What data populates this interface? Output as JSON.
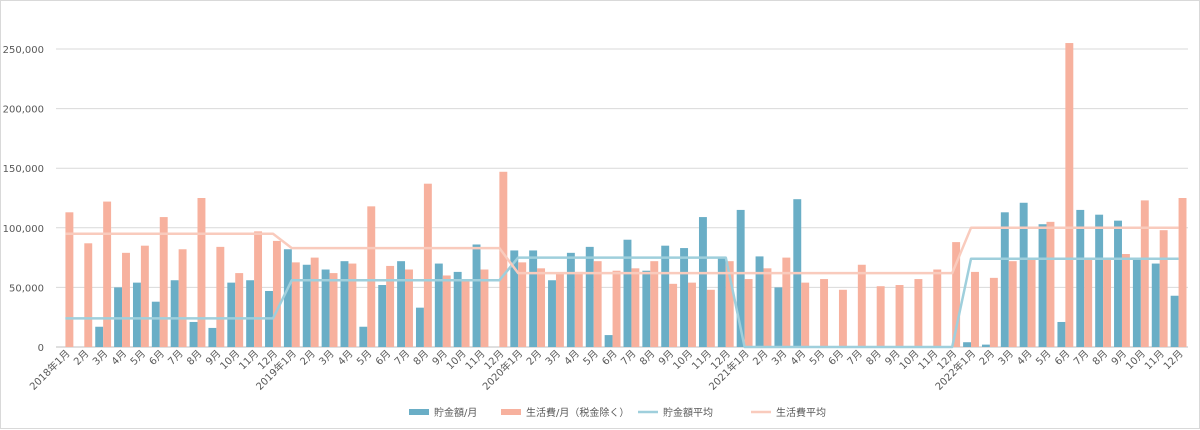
{
  "chart_data": {
    "type": "bar",
    "title": "",
    "xlabel": "",
    "ylabel": "",
    "ylim": [
      0,
      250000
    ],
    "yticks": [
      0,
      50000,
      100000,
      150000,
      200000,
      250000
    ],
    "ytick_labels": [
      "0",
      "50,000",
      "100,000",
      "150,000",
      "200,000",
      "250,000"
    ],
    "grid": true,
    "legend_position": "bottom",
    "categories": [
      "2018年1月",
      "2月",
      "3月",
      "4月",
      "5月",
      "6月",
      "7月",
      "8月",
      "9月",
      "10月",
      "11月",
      "12月",
      "2019年1月",
      "2月",
      "3月",
      "4月",
      "5月",
      "6月",
      "7月",
      "8月",
      "9月",
      "10月",
      "11月",
      "12月",
      "2020年1月",
      "2月",
      "3月",
      "4月",
      "5月",
      "6月",
      "7月",
      "8月",
      "9月",
      "10月",
      "11月",
      "12月",
      "2021年1月",
      "2月",
      "3月",
      "4月",
      "5月",
      "6月",
      "7月",
      "8月",
      "9月",
      "10月",
      "11月",
      "12月",
      "2022年1月",
      "2月",
      "3月",
      "4月",
      "5月",
      "6月",
      "7月",
      "8月",
      "9月",
      "10月",
      "11月",
      "12月"
    ],
    "series": [
      {
        "name": "貯金額/月",
        "kind": "bar",
        "color": "#6aaec6",
        "values": [
          0,
          0,
          17000,
          50000,
          54000,
          38000,
          56000,
          21000,
          16000,
          54000,
          56000,
          47000,
          82000,
          69000,
          65000,
          72000,
          17000,
          52000,
          72000,
          33000,
          70000,
          63000,
          86000,
          0,
          81000,
          81000,
          56000,
          79000,
          84000,
          10000,
          90000,
          64000,
          85000,
          83000,
          109000,
          75000,
          115000,
          76000,
          50000,
          124000,
          0,
          0,
          0,
          0,
          0,
          0,
          0,
          0,
          4000,
          2000,
          113000,
          121000,
          103000,
          21000,
          115000,
          111000,
          106000,
          75000,
          70000,
          43000
        ]
      },
      {
        "name": "生活費/月（税金除く）",
        "kind": "bar",
        "color": "#f7b19e",
        "values": [
          113000,
          87000,
          122000,
          79000,
          85000,
          109000,
          82000,
          125000,
          84000,
          62000,
          97000,
          89000,
          71000,
          75000,
          62000,
          70000,
          118000,
          68000,
          65000,
          137000,
          60000,
          57000,
          65000,
          147000,
          71000,
          66000,
          62000,
          63000,
          72000,
          64000,
          66000,
          72000,
          53000,
          54000,
          48000,
          72000,
          57000,
          66000,
          75000,
          54000,
          57000,
          48000,
          69000,
          51000,
          52000,
          57000,
          65000,
          88000,
          63000,
          58000,
          72000,
          75000,
          105000,
          255000,
          75000,
          75000,
          78000,
          123000,
          98000,
          125000
        ]
      },
      {
        "name": "貯金額平均",
        "kind": "line",
        "color": "#9fcfdc",
        "values": [
          24000,
          24000,
          24000,
          24000,
          24000,
          24000,
          24000,
          24000,
          24000,
          24000,
          24000,
          24000,
          56000,
          56000,
          56000,
          56000,
          56000,
          56000,
          56000,
          56000,
          56000,
          56000,
          56000,
          56000,
          75000,
          75000,
          75000,
          75000,
          75000,
          75000,
          75000,
          75000,
          75000,
          75000,
          75000,
          75000,
          0,
          0,
          0,
          0,
          0,
          0,
          0,
          0,
          0,
          0,
          0,
          0,
          74000,
          74000,
          74000,
          74000,
          74000,
          74000,
          74000,
          74000,
          74000,
          74000,
          74000,
          74000
        ]
      },
      {
        "name": "生活費平均",
        "kind": "line",
        "color": "#f9cbbd",
        "values": [
          95000,
          95000,
          95000,
          95000,
          95000,
          95000,
          95000,
          95000,
          95000,
          95000,
          95000,
          95000,
          83000,
          83000,
          83000,
          83000,
          83000,
          83000,
          83000,
          83000,
          83000,
          83000,
          83000,
          83000,
          62000,
          62000,
          62000,
          62000,
          62000,
          62000,
          62000,
          62000,
          62000,
          62000,
          62000,
          62000,
          62000,
          62000,
          62000,
          62000,
          62000,
          62000,
          62000,
          62000,
          62000,
          62000,
          62000,
          62000,
          100000,
          100000,
          100000,
          100000,
          100000,
          100000,
          100000,
          100000,
          100000,
          100000,
          100000,
          100000
        ]
      }
    ]
  }
}
